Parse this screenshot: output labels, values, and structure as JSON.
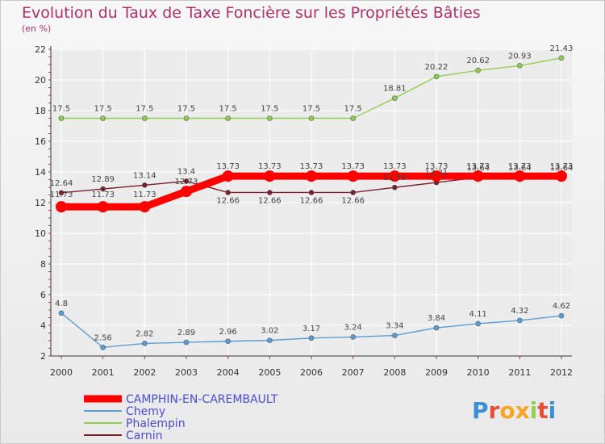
{
  "title": "Evolution du Taux de Taxe Foncière sur les Propriétés Bâties",
  "subtitle": "(en %)",
  "brand": "Proxiti",
  "colors": {
    "background": "#f0f0f0",
    "title": "#b0306a",
    "grid": "#ffffff",
    "legend_text": "#4b4bd6"
  },
  "chart_data": {
    "type": "line",
    "categories": [
      "2000",
      "2001",
      "2002",
      "2003",
      "2004",
      "2005",
      "2006",
      "2007",
      "2008",
      "2009",
      "2010",
      "2011",
      "2012"
    ],
    "ylim": [
      2,
      22
    ],
    "yticks": [
      2,
      4,
      6,
      8,
      10,
      12,
      14,
      16,
      18,
      20,
      22
    ],
    "grid": true,
    "legend_position": "bottom-left",
    "series": [
      {
        "name": "CAMPHIN-EN-CAREMBAULT",
        "color": "#ff0000",
        "values": [
          11.73,
          11.73,
          11.73,
          12.73,
          13.73,
          13.73,
          13.73,
          13.73,
          13.73,
          13.73,
          13.73,
          13.73,
          13.73
        ],
        "labels": [
          "11.73",
          "11.73",
          "11.73",
          "12.73",
          "13.73",
          "13.73",
          "13.73",
          "13.73",
          "13.73",
          "13.73",
          "13.73",
          "13.73",
          "13.73"
        ]
      },
      {
        "name": "Chemy",
        "color": "#5a9ed6",
        "values": [
          4.8,
          2.56,
          2.82,
          2.89,
          2.96,
          3.02,
          3.17,
          3.24,
          3.34,
          3.84,
          4.11,
          4.32,
          4.62
        ],
        "labels": [
          "4.8",
          "2.56",
          "2.82",
          "2.89",
          "2.96",
          "3.02",
          "3.17",
          "3.24",
          "3.34",
          "3.84",
          "4.11",
          "4.32",
          "4.62"
        ]
      },
      {
        "name": "Phalempin",
        "color": "#8fd14f",
        "values": [
          17.5,
          17.5,
          17.5,
          17.5,
          17.5,
          17.5,
          17.5,
          17.5,
          18.81,
          20.22,
          20.62,
          20.93,
          21.43
        ],
        "labels": [
          "17.5",
          "17.5",
          "17.5",
          "17.5",
          "17.5",
          "17.5",
          "17.5",
          "17.5",
          "18.81",
          "20.22",
          "20.62",
          "20.93",
          "21.43"
        ]
      },
      {
        "name": "Carnin",
        "color": "#7a1f2b",
        "values": [
          12.64,
          12.89,
          13.14,
          13.4,
          12.66,
          12.66,
          12.66,
          12.66,
          12.99,
          13.31,
          13.64,
          13.64,
          13.64
        ],
        "labels": [
          "12.64",
          "12.89",
          "13.14",
          "13.4",
          "12.66",
          "12.66",
          "12.66",
          "12.66",
          "12.99",
          "13.31",
          "13.64",
          "13.64",
          "13.64"
        ]
      }
    ]
  }
}
